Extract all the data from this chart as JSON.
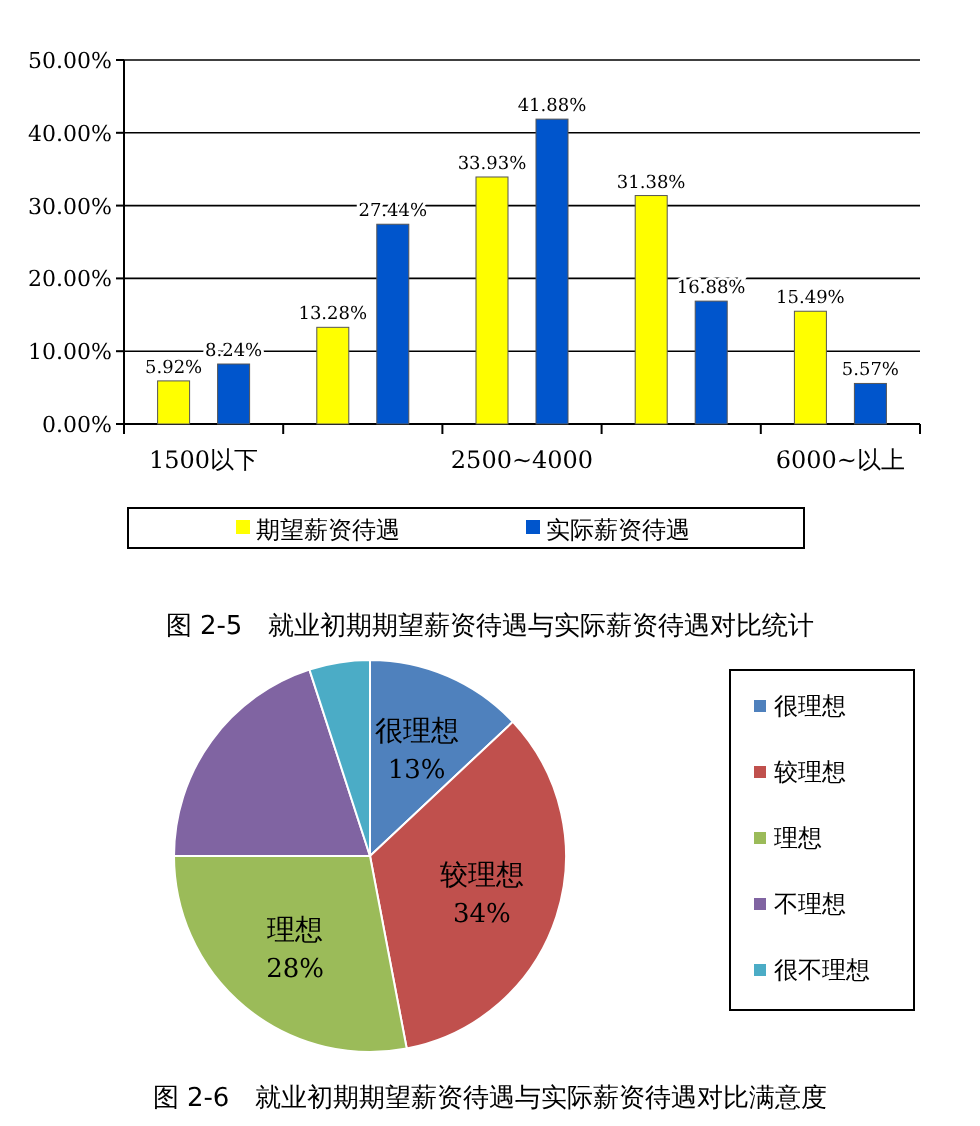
{
  "chart_data": [
    {
      "type": "bar",
      "title": "图 2-5　就业初期期望薪资待遇与实际薪资待遇对比统计",
      "categories": [
        "1500以下",
        null,
        "2500~4000",
        null,
        "6000~以上"
      ],
      "series": [
        {
          "name": "期望薪资待遇",
          "color": "#ffff00",
          "values": [
            5.92,
            13.28,
            33.93,
            31.38,
            15.49
          ],
          "value_labels": [
            "5.92%",
            "13.28%",
            "33.93%",
            "31.38%",
            "15.49%"
          ]
        },
        {
          "name": "实际薪资待遇",
          "color": "#0055cc",
          "values": [
            8.24,
            27.44,
            41.88,
            16.88,
            5.57
          ],
          "value_labels": [
            "8.24%",
            "27.44%",
            "41.88%",
            "16.88%",
            "5.57%"
          ]
        }
      ],
      "ylim": [
        0,
        50
      ],
      "yticks": [
        {
          "value": 0,
          "label": "0.00%"
        },
        {
          "value": 10,
          "label": "10.00%"
        },
        {
          "value": 20,
          "label": "20.00%"
        },
        {
          "value": 30,
          "label": "30.00%"
        },
        {
          "value": 40,
          "label": "40.00%"
        },
        {
          "value": 50,
          "label": "50.00%"
        }
      ],
      "grid": "y",
      "legend": "bottom"
    },
    {
      "type": "pie",
      "title": "图 2-6　就业初期期望薪资待遇与实际薪资待遇对比满意度",
      "categories": [
        "很理想",
        "较理想",
        "理想",
        "不理想",
        "很不理想"
      ],
      "values": [
        13,
        34,
        28,
        20,
        5
      ],
      "value_labels": [
        "13%",
        "34%",
        "28%",
        null,
        null
      ],
      "colors": [
        "#4f81bd",
        "#c0504d",
        "#9bbb59",
        "#8064a2",
        "#4bacc6"
      ],
      "legend": "right"
    }
  ]
}
